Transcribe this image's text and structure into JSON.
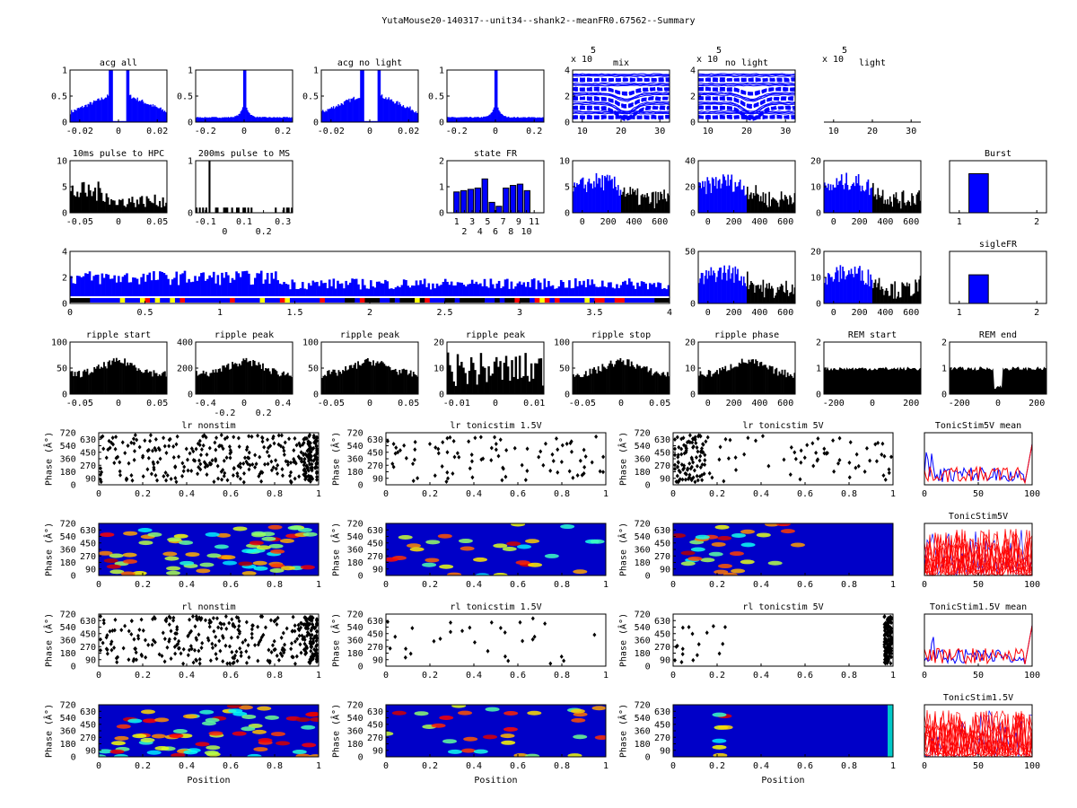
{
  "title": "YutaMouse20-140317--unit34--shank2--meanFR0.67562--Summary",
  "colors": {
    "blue": "#0000ff",
    "black": "#000000",
    "red": "#ff0000",
    "yellow": "#ffff00"
  },
  "chart_data": [
    {
      "id": "p1",
      "type": "bar",
      "kind": "acg_hole",
      "title": "acg all",
      "xticks": [
        "-0.02",
        "0",
        "0.02"
      ],
      "yticks": [
        "0",
        "0.5",
        "1"
      ],
      "ylim": [
        0,
        1
      ]
    },
    {
      "id": "p2",
      "type": "bar",
      "kind": "acg_peak",
      "title": "",
      "xticks": [
        "-0.2",
        "0",
        "0.2"
      ],
      "yticks": [
        "0",
        "0.5",
        "1"
      ],
      "yside": "right",
      "ylim": [
        0,
        1
      ]
    },
    {
      "id": "p3",
      "type": "bar",
      "kind": "acg_hole",
      "title": "acg no light",
      "xticks": [
        "-0.02",
        "0",
        "0.02"
      ],
      "yticks": [
        "0",
        "0.5",
        "1"
      ],
      "yside": "right",
      "ylim": [
        0,
        1
      ]
    },
    {
      "id": "p4",
      "type": "bar",
      "kind": "acg_peak",
      "title": "",
      "xticks": [
        "-0.2",
        "0",
        "0.2"
      ],
      "yticks": [
        "0",
        "0.5",
        "1"
      ],
      "yside": "right",
      "ylim": [
        0,
        1
      ]
    },
    {
      "id": "p5",
      "type": "line",
      "kind": "waveforms",
      "title": "mix",
      "exp": "x 10",
      "expn": "5",
      "xticks": [
        "10",
        "20",
        "30"
      ],
      "yticks": [
        "0",
        "2",
        "4"
      ],
      "yside": "right"
    },
    {
      "id": "p6",
      "type": "line",
      "kind": "waveforms",
      "title": "no light",
      "exp": "x 10",
      "expn": "5",
      "xticks": [
        "10",
        "20",
        "30"
      ],
      "yticks": [
        "0",
        "2",
        "4"
      ],
      "yside": "right"
    },
    {
      "id": "p7",
      "type": "line",
      "kind": "empty",
      "title": "light",
      "exp": "x 10",
      "expn": "5",
      "xticks": [
        "10",
        "20",
        "30"
      ],
      "yticks": [],
      "noframe": true
    },
    {
      "id": "p8",
      "type": "bar",
      "kind": "bars_black",
      "title": "10ms pulse to HPC",
      "xticks": [
        "-0.05",
        "0",
        "0.05"
      ],
      "yticks": [
        "0",
        "5",
        "10"
      ],
      "ylim": [
        0,
        10
      ]
    },
    {
      "id": "p9",
      "type": "bar",
      "kind": "bars_sparse",
      "title": "200ms pulse to MS",
      "xticks": [
        "-0.1",
        "0",
        "0.1",
        "0.2",
        "0.3"
      ],
      "yticks": [
        "0",
        "1"
      ],
      "yside": "right"
    },
    {
      "id": "p10",
      "type": "bar",
      "kind": "state",
      "title": "state FR",
      "xticks": [
        "1",
        "2",
        "3",
        "4",
        "5",
        "6",
        "7",
        "8",
        "9",
        "10",
        "11"
      ],
      "yticks": [
        "0",
        "1",
        "2"
      ],
      "values": [
        0.8,
        0.85,
        0.9,
        0.95,
        1.3,
        0.4,
        0.25,
        0.95,
        1.05,
        1.1,
        0.85
      ],
      "ylim": [
        0,
        2
      ]
    },
    {
      "id": "p11",
      "type": "bar",
      "kind": "blueblack",
      "title": "",
      "xticks": [
        "0",
        "200",
        "400",
        "600"
      ],
      "yticks": [
        "0",
        "5",
        "10"
      ],
      "yside": "right"
    },
    {
      "id": "p12",
      "type": "bar",
      "kind": "blueblack",
      "title": "",
      "xticks": [
        "0",
        "200",
        "400",
        "600"
      ],
      "yticks": [
        "0",
        "20",
        "40"
      ],
      "yside": "right"
    },
    {
      "id": "p13",
      "type": "bar",
      "kind": "blueblack",
      "title": "",
      "xticks": [
        "0",
        "200",
        "400",
        "600"
      ],
      "yticks": [
        "0",
        "10",
        "20"
      ],
      "yside": "right"
    },
    {
      "id": "p14",
      "type": "bar",
      "kind": "burst",
      "title": "Burst",
      "xticks": [
        "1",
        "2"
      ],
      "yticks": [],
      "values": [
        0.75
      ]
    },
    {
      "id": "p15",
      "type": "bar",
      "kind": "longtrace",
      "title": "",
      "xticks": [
        "0",
        "0.5",
        "1",
        "1.5",
        "2",
        "2.5",
        "3",
        "3.5",
        "4"
      ],
      "yticks": [
        "0",
        "2",
        "4"
      ],
      "ylim": [
        0,
        4
      ]
    },
    {
      "id": "p16",
      "type": "bar",
      "kind": "blueblack",
      "title": "",
      "xticks": [
        "0",
        "200",
        "400",
        "600"
      ],
      "yticks": [
        "0",
        "50"
      ],
      "yside": "right"
    },
    {
      "id": "p17",
      "type": "bar",
      "kind": "blueblack",
      "title": "",
      "xticks": [
        "0",
        "200",
        "400",
        "600"
      ],
      "yticks": [
        "0",
        "10",
        "20"
      ],
      "yside": "right"
    },
    {
      "id": "p18",
      "type": "bar",
      "kind": "burst",
      "title": "sigleFR",
      "xticks": [
        "1",
        "2"
      ],
      "yticks": [],
      "values": [
        0.55
      ]
    },
    {
      "id": "p19",
      "type": "bar",
      "kind": "ripple",
      "title": "ripple start",
      "xticks": [
        "-0.05",
        "0",
        "0.05"
      ],
      "yticks": [
        "0",
        "50",
        "100"
      ]
    },
    {
      "id": "p20",
      "type": "bar",
      "kind": "ripple",
      "title": "ripple peak",
      "xticks": [
        "-0.4",
        "-0.2",
        "0",
        "0.2",
        "0.4"
      ],
      "yticks": [
        "0",
        "200",
        "400"
      ]
    },
    {
      "id": "p21",
      "type": "bar",
      "kind": "ripple",
      "title": "ripple peak",
      "xticks": [
        "-0.05",
        "0",
        "0.05"
      ],
      "yticks": [
        "0",
        "50",
        "100"
      ]
    },
    {
      "id": "p22",
      "type": "bar",
      "kind": "ripple2",
      "title": "ripple peak",
      "xticks": [
        "-0.01",
        "0",
        "0.01"
      ],
      "yticks": [
        "0",
        "10",
        "20"
      ]
    },
    {
      "id": "p23",
      "type": "bar",
      "kind": "ripple",
      "title": "ripple stop",
      "xticks": [
        "-0.05",
        "0",
        "0.05"
      ],
      "yticks": [
        "0",
        "50",
        "100"
      ]
    },
    {
      "id": "p24",
      "type": "bar",
      "kind": "ripple",
      "title": "ripple phase",
      "xticks": [
        "0",
        "200",
        "400",
        "600"
      ],
      "yticks": [
        "0",
        "10",
        "20"
      ]
    },
    {
      "id": "p25",
      "type": "area",
      "kind": "rem",
      "title": "REM start",
      "xticks": [
        "-200",
        "0",
        "200"
      ],
      "yticks": [
        "0",
        "1",
        "2"
      ]
    },
    {
      "id": "p26",
      "type": "area",
      "kind": "rem",
      "title": "REM end",
      "xticks": [
        "-200",
        "0",
        "200"
      ],
      "yticks": [
        "0",
        "1",
        "2"
      ]
    },
    {
      "id": "p27",
      "type": "scatter",
      "kind": "raster",
      "title": "lr nonstim",
      "xticks": [
        "0",
        "0.2",
        "0.4",
        "0.6",
        "0.8",
        "1"
      ],
      "yticks": [
        "0",
        "90",
        "180",
        "270",
        "360",
        "450",
        "540",
        "630",
        "720"
      ],
      "ylabel": "Phase (Â°)"
    },
    {
      "id": "p28",
      "type": "scatter",
      "kind": "raster_sparse",
      "title": "lr tonicstim 1.5V",
      "xticks": [
        "0",
        "0.2",
        "0.4",
        "0.6",
        "0.8",
        "1"
      ],
      "yticks": [
        "0",
        "90",
        "180",
        "270",
        "360",
        "450",
        "540",
        "630",
        "720"
      ],
      "ylabel": "Phase (Â°)"
    },
    {
      "id": "p29",
      "type": "scatter",
      "kind": "raster_left",
      "title": "lr tonicstim 5V",
      "xticks": [
        "0",
        "0.2",
        "0.4",
        "0.6",
        "0.8",
        "1"
      ],
      "yticks": [
        "0",
        "90",
        "180",
        "270",
        "360",
        "450",
        "540",
        "630",
        "720"
      ],
      "ylabel": "Phase (Â°)"
    },
    {
      "id": "p30",
      "type": "line",
      "kind": "mean",
      "title": "TonicStim5V mean",
      "xticks": [
        "0",
        "50",
        "100"
      ],
      "yticks": []
    },
    {
      "id": "p31",
      "type": "heatmap",
      "kind": "heat",
      "title": "",
      "xticks": [
        "0",
        "0.2",
        "0.4",
        "0.6",
        "0.8",
        "1"
      ],
      "yticks": [
        "0",
        "90",
        "180",
        "270",
        "360",
        "450",
        "540",
        "630",
        "720"
      ],
      "ylabel": "Phase (Â°)"
    },
    {
      "id": "p32",
      "type": "heatmap",
      "kind": "heat_sparse",
      "title": "",
      "xticks": [
        "0",
        "0.2",
        "0.4",
        "0.6",
        "0.8",
        "1"
      ],
      "yticks": [
        "0",
        "90",
        "180",
        "270",
        "360",
        "450",
        "540",
        "630",
        "720"
      ],
      "ylabel": "Phase (Â°)"
    },
    {
      "id": "p33",
      "type": "heatmap",
      "kind": "heat_left",
      "title": "",
      "xticks": [
        "0",
        "0.2",
        "0.4",
        "0.6",
        "0.8",
        "1"
      ],
      "yticks": [
        "0",
        "90",
        "180",
        "270",
        "360",
        "450",
        "540",
        "630",
        "720"
      ],
      "ylabel": "Phase (Â°)"
    },
    {
      "id": "p34",
      "type": "line",
      "kind": "many",
      "title": "TonicStim5V",
      "xticks": [
        "0",
        "50",
        "100"
      ],
      "yticks": []
    },
    {
      "id": "p35",
      "type": "scatter",
      "kind": "raster",
      "title": "rl nonstim",
      "xticks": [
        "0",
        "0.2",
        "0.4",
        "0.6",
        "0.8",
        "1"
      ],
      "yticks": [
        "0",
        "90",
        "180",
        "270",
        "360",
        "450",
        "540",
        "630",
        "720"
      ],
      "ylabel": "Phase (Â°)"
    },
    {
      "id": "p36",
      "type": "scatter",
      "kind": "raster_few",
      "title": "rl tonicstim 1.5V",
      "xticks": [
        "0",
        "0.2",
        "0.4",
        "0.6",
        "0.8",
        "1"
      ],
      "yticks": [
        "0",
        "90",
        "180",
        "270",
        "360",
        "450",
        "540",
        "630",
        "720"
      ],
      "ylabel": "Phase (Â°)"
    },
    {
      "id": "p37",
      "type": "scatter",
      "kind": "raster_edge",
      "title": "rl tonicstim 5V",
      "xticks": [
        "0",
        "0.2",
        "0.4",
        "0.6",
        "0.8",
        "1"
      ],
      "yticks": [
        "0",
        "90",
        "180",
        "270",
        "360",
        "450",
        "540",
        "630",
        "720"
      ],
      "ylabel": "Phase (Â°)"
    },
    {
      "id": "p38",
      "type": "line",
      "kind": "mean",
      "title": "TonicStim1.5V mean",
      "xticks": [
        "0",
        "50",
        "100"
      ],
      "yticks": []
    },
    {
      "id": "p39",
      "type": "heatmap",
      "kind": "heat",
      "title": "",
      "xticks": [
        "0",
        "0.2",
        "0.4",
        "0.6",
        "0.8",
        "1"
      ],
      "yticks": [
        "0",
        "90",
        "180",
        "270",
        "360",
        "450",
        "540",
        "630",
        "720"
      ],
      "ylabel": "Phase (Â°)",
      "xlabel": "Position"
    },
    {
      "id": "p40",
      "type": "heatmap",
      "kind": "heat_sparse",
      "title": "",
      "xticks": [
        "0",
        "0.2",
        "0.4",
        "0.6",
        "0.8",
        "1"
      ],
      "yticks": [
        "0",
        "90",
        "180",
        "270",
        "360",
        "450",
        "540",
        "630",
        "720"
      ],
      "ylabel": "Phase (Â°)",
      "xlabel": "Position"
    },
    {
      "id": "p41",
      "type": "heatmap",
      "kind": "heat_edge",
      "title": "",
      "xticks": [
        "0",
        "0.2",
        "0.4",
        "0.6",
        "0.8",
        "1"
      ],
      "yticks": [
        "0",
        "90",
        "180",
        "270",
        "360",
        "450",
        "540",
        "630",
        "720"
      ],
      "ylabel": "Phase (Â°)",
      "xlabel": "Position"
    },
    {
      "id": "p42",
      "type": "line",
      "kind": "many",
      "title": "TonicStim1.5V",
      "xticks": [
        "0",
        "50",
        "100"
      ],
      "yticks": []
    }
  ]
}
